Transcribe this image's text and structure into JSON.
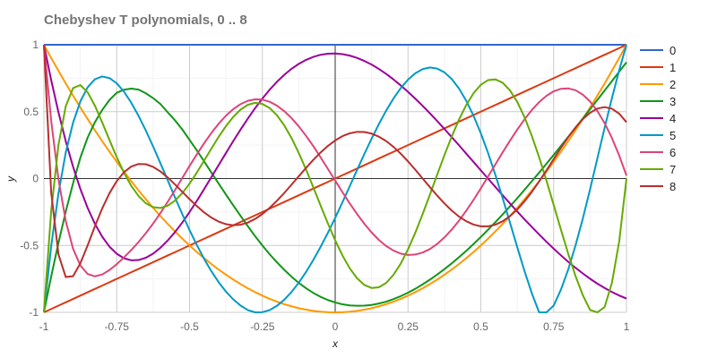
{
  "chart_data": {
    "type": "line",
    "title": "Chebyshev T polynomials, 0 .. 8",
    "xlabel": "x",
    "ylabel": "y",
    "xlim": [
      -1,
      1
    ],
    "ylim": [
      -1,
      1
    ],
    "x_ticks": [
      -1,
      -0.75,
      -0.5,
      -0.25,
      0,
      0.25,
      0.5,
      0.75,
      1
    ],
    "x_tick_labels": [
      "-1",
      "-0.75",
      "-0.5",
      "-0.25",
      "0",
      "0.25",
      "0.5",
      "0.75",
      "1"
    ],
    "y_ticks": [
      -1,
      -0.5,
      0,
      0.5,
      1
    ],
    "y_tick_labels": [
      "-1",
      "-0.5",
      "0",
      "0.5",
      "1"
    ],
    "grid": true,
    "legend_position": "right",
    "x": [
      -1,
      -0.975,
      -0.95,
      -0.925,
      -0.9,
      -0.875,
      -0.85,
      -0.825,
      -0.8,
      -0.775,
      -0.75,
      -0.725,
      -0.7,
      -0.675,
      -0.65,
      -0.625,
      -0.6,
      -0.575,
      -0.55,
      -0.525,
      -0.5,
      -0.475,
      -0.45,
      -0.425,
      -0.4,
      -0.375,
      -0.35,
      -0.325,
      -0.3,
      -0.275,
      -0.25,
      -0.225,
      -0.2,
      -0.175,
      -0.15,
      -0.125,
      -0.1,
      -0.075,
      -0.05,
      -0.025,
      0,
      0.025,
      0.05,
      0.075,
      0.1,
      0.125,
      0.15,
      0.175,
      0.2,
      0.225,
      0.25,
      0.275,
      0.3,
      0.325,
      0.35,
      0.375,
      0.4,
      0.425,
      0.45,
      0.475,
      0.5,
      0.525,
      0.55,
      0.575,
      0.6,
      0.625,
      0.65,
      0.675,
      0.7,
      0.725,
      0.75,
      0.775,
      0.8,
      0.825,
      0.85,
      0.875,
      0.9,
      0.925,
      0.95,
      0.975,
      1
    ],
    "series": [
      {
        "name": "0",
        "color": "#3366cc",
        "values": [
          1,
          1,
          1,
          1,
          1,
          1,
          1,
          1,
          1,
          1,
          1,
          1,
          1,
          1,
          1,
          1,
          1,
          1,
          1,
          1,
          1,
          1,
          1,
          1,
          1,
          1,
          1,
          1,
          1,
          1,
          1,
          1,
          1,
          1,
          1,
          1,
          1,
          1,
          1,
          1,
          1,
          1,
          1,
          1,
          1,
          1,
          1,
          1,
          1,
          1,
          1,
          1,
          1,
          1,
          1,
          1,
          1,
          1,
          1,
          1,
          1,
          1,
          1,
          1,
          1,
          1,
          1,
          1,
          1,
          1,
          1,
          1,
          1,
          1,
          1,
          1,
          1,
          1,
          1,
          1,
          1
        ]
      },
      {
        "name": "1",
        "color": "#dc3912",
        "values": [
          -1,
          -0.975,
          -0.95,
          -0.925,
          -0.9,
          -0.875,
          -0.85,
          -0.825,
          -0.8,
          -0.775,
          -0.75,
          -0.725,
          -0.7,
          -0.675,
          -0.65,
          -0.625,
          -0.6,
          -0.575,
          -0.55,
          -0.525,
          -0.5,
          -0.475,
          -0.45,
          -0.425,
          -0.4,
          -0.375,
          -0.35,
          -0.325,
          -0.3,
          -0.275,
          -0.25,
          -0.225,
          -0.2,
          -0.175,
          -0.15,
          -0.125,
          -0.1,
          -0.075,
          -0.05,
          -0.025,
          0,
          0.025,
          0.05,
          0.075,
          0.1,
          0.125,
          0.15,
          0.175,
          0.2,
          0.225,
          0.25,
          0.275,
          0.3,
          0.325,
          0.35,
          0.375,
          0.4,
          0.425,
          0.45,
          0.475,
          0.5,
          0.525,
          0.55,
          0.575,
          0.6,
          0.625,
          0.65,
          0.675,
          0.7,
          0.725,
          0.75,
          0.775,
          0.8,
          0.825,
          0.85,
          0.875,
          0.9,
          0.925,
          0.95,
          0.975,
          1
        ]
      },
      {
        "name": "2",
        "color": "#ff9900",
        "values": [
          1,
          0.901,
          0.805,
          0.711,
          0.62,
          0.531,
          0.445,
          0.361,
          0.28,
          0.201,
          0.125,
          0.051,
          -0.02,
          -0.089,
          -0.155,
          -0.219,
          -0.28,
          -0.339,
          -0.395,
          -0.449,
          -0.5,
          -0.549,
          -0.595,
          -0.639,
          -0.68,
          -0.719,
          -0.755,
          -0.789,
          -0.82,
          -0.849,
          -0.875,
          -0.899,
          -0.92,
          -0.939,
          -0.955,
          -0.969,
          -0.98,
          -0.989,
          -0.995,
          -0.999,
          -1,
          -0.999,
          -0.995,
          -0.989,
          -0.98,
          -0.969,
          -0.955,
          -0.939,
          -0.92,
          -0.899,
          -0.875,
          -0.849,
          -0.82,
          -0.789,
          -0.755,
          -0.719,
          -0.68,
          -0.639,
          -0.595,
          -0.549,
          -0.5,
          -0.449,
          -0.395,
          -0.339,
          -0.28,
          -0.219,
          -0.155,
          -0.089,
          -0.02,
          0.051,
          0.125,
          0.201,
          0.28,
          0.361,
          0.445,
          0.531,
          0.62,
          0.711,
          0.805,
          0.901,
          1
        ]
      },
      {
        "name": "3",
        "color": "#109618",
        "values": [
          -1,
          -0.731,
          -0.48,
          -0.247,
          -0.036,
          0.155,
          0.306,
          0.421,
          0.512,
          0.587,
          0.641,
          0.664,
          0.672,
          0.665,
          0.637,
          0.601,
          0.557,
          0.495,
          0.435,
          0.367,
          0.289,
          0.21,
          0.128,
          0.045,
          -0.038,
          -0.12,
          -0.2,
          -0.279,
          -0.356,
          -0.431,
          -0.5,
          -0.566,
          -0.626,
          -0.682,
          -0.733,
          -0.78,
          -0.82,
          -0.855,
          -0.884,
          -0.908,
          -0.926,
          -0.94,
          -0.948,
          -0.951,
          -0.95,
          -0.945,
          -0.934,
          -0.92,
          -0.901,
          -0.879,
          -0.853,
          -0.824,
          -0.791,
          -0.756,
          -0.718,
          -0.677,
          -0.634,
          -0.588,
          -0.54,
          -0.489,
          -0.437,
          -0.382,
          -0.326,
          -0.268,
          -0.208,
          -0.147,
          -0.084,
          -0.02,
          0.044,
          0.11,
          0.176,
          0.244,
          0.312,
          0.38,
          0.449,
          0.518,
          0.588,
          0.658,
          0.728,
          0.799,
          0.869
        ]
      },
      {
        "name": "4",
        "color": "#990099",
        "values": [
          1,
          0.735,
          0.495,
          0.279,
          0.089,
          -0.077,
          -0.219,
          -0.338,
          -0.434,
          -0.509,
          -0.562,
          -0.596,
          -0.611,
          -0.609,
          -0.592,
          -0.561,
          -0.517,
          -0.463,
          -0.4,
          -0.329,
          -0.25,
          -0.167,
          -0.079,
          0.011,
          0.101,
          0.191,
          0.28,
          0.366,
          0.448,
          0.526,
          0.598,
          0.664,
          0.723,
          0.775,
          0.82,
          0.857,
          0.887,
          0.909,
          0.925,
          0.933,
          0.935,
          0.93,
          0.919,
          0.902,
          0.879,
          0.852,
          0.819,
          0.782,
          0.741,
          0.696,
          0.648,
          0.597,
          0.544,
          0.488,
          0.43,
          0.371,
          0.31,
          0.249,
          0.186,
          0.124,
          0.061,
          -0.001,
          -0.063,
          -0.125,
          -0.186,
          -0.246,
          -0.305,
          -0.362,
          -0.418,
          -0.472,
          -0.524,
          -0.574,
          -0.622,
          -0.667,
          -0.709,
          -0.749,
          -0.785,
          -0.818,
          -0.848,
          -0.874,
          -0.897
        ]
      },
      {
        "name": "5",
        "color": "#0099c6",
        "values": [
          -1,
          -0.504,
          -0.11,
          0.195,
          0.417,
          0.576,
          0.682,
          0.742,
          0.763,
          0.751,
          0.712,
          0.649,
          0.566,
          0.468,
          0.358,
          0.239,
          0.114,
          -0.013,
          -0.141,
          -0.266,
          -0.385,
          -0.497,
          -0.6,
          -0.693,
          -0.775,
          -0.845,
          -0.903,
          -0.949,
          -0.983,
          -1,
          -0.999,
          -0.983,
          -0.951,
          -0.906,
          -0.848,
          -0.778,
          -0.698,
          -0.608,
          -0.51,
          -0.405,
          -0.294,
          -0.177,
          -0.057,
          0.064,
          0.183,
          0.298,
          0.407,
          0.508,
          0.598,
          0.676,
          0.739,
          0.787,
          0.818,
          0.83,
          0.822,
          0.794,
          0.744,
          0.673,
          0.581,
          0.469,
          0.338,
          0.19,
          0.027,
          -0.147,
          -0.329,
          -0.513,
          -0.692,
          -0.857,
          -0.999,
          -1,
          -0.95,
          -0.83,
          -0.68,
          -0.5,
          -0.3,
          -0.08,
          0.15,
          0.38,
          0.6,
          0.81,
          1
        ]
      },
      {
        "name": "6",
        "color": "#dd4477",
        "values": [
          1,
          0.431,
          -0.006,
          -0.317,
          -0.524,
          -0.649,
          -0.713,
          -0.731,
          -0.717,
          -0.684,
          -0.64,
          -0.589,
          -0.534,
          -0.474,
          -0.408,
          -0.336,
          -0.258,
          -0.174,
          -0.086,
          0.004,
          0.094,
          0.181,
          0.264,
          0.341,
          0.41,
          0.47,
          0.519,
          0.556,
          0.581,
          0.592,
          0.59,
          0.574,
          0.545,
          0.504,
          0.452,
          0.39,
          0.319,
          0.242,
          0.158,
          0.072,
          -0.015,
          -0.102,
          -0.186,
          -0.265,
          -0.338,
          -0.403,
          -0.459,
          -0.504,
          -0.538,
          -0.561,
          -0.571,
          -0.568,
          -0.553,
          -0.527,
          -0.489,
          -0.44,
          -0.382,
          -0.315,
          -0.24,
          -0.159,
          -0.073,
          0.016,
          0.106,
          0.196,
          0.283,
          0.366,
          0.443,
          0.512,
          0.571,
          0.618,
          0.652,
          0.671,
          0.674,
          0.66,
          0.627,
          0.576,
          0.505,
          0.414,
          0.303,
          0.172,
          0.022
        ]
      },
      {
        "name": "7",
        "color": "#66aa00",
        "values": [
          -1,
          -0.24,
          0.252,
          0.541,
          0.676,
          0.699,
          0.645,
          0.545,
          0.42,
          0.288,
          0.16,
          0.043,
          -0.055,
          -0.131,
          -0.185,
          -0.214,
          -0.22,
          -0.203,
          -0.165,
          -0.109,
          -0.038,
          0.045,
          0.134,
          0.224,
          0.312,
          0.392,
          0.461,
          0.515,
          0.551,
          0.566,
          0.558,
          0.527,
          0.473,
          0.398,
          0.303,
          0.191,
          0.067,
          -0.066,
          -0.202,
          -0.336,
          -0.462,
          -0.575,
          -0.671,
          -0.745,
          -0.795,
          -0.818,
          -0.813,
          -0.78,
          -0.72,
          -0.636,
          -0.529,
          -0.405,
          -0.267,
          -0.121,
          0.028,
          0.175,
          0.314,
          0.441,
          0.55,
          0.638,
          0.701,
          0.736,
          0.741,
          0.716,
          0.659,
          0.573,
          0.458,
          0.319,
          0.16,
          -0.014,
          -0.197,
          -0.382,
          -0.562,
          -0.728,
          -0.871,
          -0.982,
          -1,
          -0.96,
          -0.78,
          -0.47,
          0
        ]
      },
      {
        "name": "8",
        "color": "#b82e2e",
        "values": [
          1,
          -0.106,
          -0.567,
          -0.736,
          -0.73,
          -0.634,
          -0.5,
          -0.357,
          -0.224,
          -0.11,
          -0.019,
          0.048,
          0.09,
          0.109,
          0.107,
          0.087,
          0.053,
          0.008,
          -0.044,
          -0.099,
          -0.154,
          -0.206,
          -0.253,
          -0.292,
          -0.322,
          -0.341,
          -0.349,
          -0.345,
          -0.329,
          -0.302,
          -0.265,
          -0.219,
          -0.166,
          -0.108,
          -0.046,
          0.017,
          0.08,
          0.14,
          0.195,
          0.244,
          0.285,
          0.317,
          0.338,
          0.349,
          0.348,
          0.336,
          0.313,
          0.28,
          0.237,
          0.186,
          0.128,
          0.066,
          0.001,
          -0.064,
          -0.127,
          -0.186,
          -0.239,
          -0.284,
          -0.319,
          -0.344,
          -0.357,
          -0.357,
          -0.345,
          -0.319,
          -0.281,
          -0.231,
          -0.17,
          -0.1,
          -0.022,
          0.06,
          0.145,
          0.229,
          0.309,
          0.382,
          0.444,
          0.492,
          0.523,
          0.534,
          0.522,
          0.485,
          0.421
        ]
      }
    ]
  }
}
